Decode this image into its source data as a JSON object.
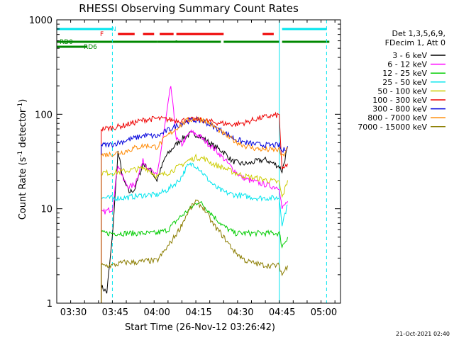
{
  "chart_data": {
    "type": "line",
    "title": "RHESSI Observing Summary Count Rates",
    "xlabel": "Start Time (26-Nov-12 03:26:42)",
    "ylabel_pre": "Count Rate (s",
    "ylabel_sup": "-1",
    "ylabel_mid": " detector",
    "ylabel_sup2": "-1",
    "ylabel_post": ")",
    "yscale": "log",
    "ylim": [
      1,
      1000
    ],
    "xlim": [
      "03:24",
      "05:06"
    ],
    "x_ticks": [
      "03:30",
      "03:45",
      "04:00",
      "04:15",
      "04:30",
      "04:45",
      "05:00"
    ],
    "y_ticks": [
      "1",
      "10",
      "100",
      "1000"
    ],
    "footer_date": "21-Oct-2021 02:40",
    "legend": {
      "header_line1": "Det 1,3,5,6,9,",
      "header_line2": "FDecim 1, Att 0",
      "entries": [
        {
          "label": "3 - 6 keV",
          "color": "#000000"
        },
        {
          "label": "6 - 12 keV",
          "color": "#ff00ff"
        },
        {
          "label": "12 - 25 keV",
          "color": "#00cc00"
        },
        {
          "label": "25 - 50 keV",
          "color": "#00e5ee"
        },
        {
          "label": "50 - 100 keV",
          "color": "#cccc00"
        },
        {
          "label": "100 - 300 keV",
          "color": "#ee0000"
        },
        {
          "label": "300 - 800 keV",
          "color": "#0000dd"
        },
        {
          "label": "800 - 7000 keV",
          "color": "#ff8800"
        },
        {
          "label": "7000 - 15000 keV",
          "color": "#8b7d00"
        }
      ]
    },
    "flags": {
      "night_label": "N",
      "flare_label": "F",
      "rd0_label": "RD0",
      "rd6_label": "RD6",
      "night_color": "#00e5ee",
      "flare_color": "#ee0000",
      "rd_color": "#008800",
      "night_intervals": [
        [
          "03:24",
          "03:44"
        ],
        [
          "04:45",
          "05:01"
        ]
      ],
      "flare_intervals": [
        [
          "03:46",
          "03:52"
        ],
        [
          "03:55",
          "03:59"
        ],
        [
          "04:01",
          "04:06"
        ],
        [
          "04:07",
          "04:24"
        ],
        [
          "04:38",
          "04:42"
        ]
      ],
      "rd0_intervals": [
        [
          "03:24",
          "03:35"
        ]
      ],
      "rd6_intervals": [
        [
          "03:24",
          "04:00"
        ],
        [
          "04:00",
          "04:23"
        ],
        [
          "04:24",
          "04:44"
        ],
        [
          "04:45",
          "05:02"
        ]
      ]
    },
    "dashed_vlines": [
      "03:44",
      "05:01"
    ],
    "solid_vlines": [
      "04:44"
    ],
    "series": [
      {
        "name": "3 - 6 keV",
        "color": "#000000",
        "x": [
          "03:40",
          "03:42",
          "03:44",
          "03:46",
          "03:48",
          "03:50",
          "03:52",
          "03:55",
          "03:58",
          "04:00",
          "04:03",
          "04:06",
          "04:09",
          "04:12",
          "04:15",
          "04:18",
          "04:21",
          "04:24",
          "04:27",
          "04:30",
          "04:33",
          "04:36",
          "04:39",
          "04:42",
          "04:44",
          "04:45",
          "04:47"
        ],
        "y": [
          1.5,
          1.3,
          5,
          40,
          20,
          15,
          16,
          30,
          25,
          20,
          35,
          45,
          55,
          62,
          60,
          52,
          45,
          40,
          32,
          30,
          30,
          32,
          33,
          30,
          28,
          25,
          45
        ]
      },
      {
        "name": "6 - 12 keV",
        "color": "#ff00ff",
        "x": [
          "03:40",
          "03:42",
          "03:44",
          "03:46",
          "03:48",
          "03:50",
          "03:52",
          "03:55",
          "03:58",
          "04:00",
          "04:03",
          "04:05",
          "04:07",
          "04:09",
          "04:12",
          "04:15",
          "04:18",
          "04:21",
          "04:24",
          "04:27",
          "04:30",
          "04:33",
          "04:36",
          "04:39",
          "04:42",
          "04:44",
          "04:45",
          "04:47"
        ],
        "y": [
          9,
          9.5,
          10,
          30,
          20,
          17,
          18,
          32,
          25,
          22,
          80,
          200,
          55,
          48,
          65,
          60,
          50,
          42,
          34,
          27,
          22,
          20,
          19,
          18,
          17,
          17,
          10,
          12
        ]
      },
      {
        "name": "12 - 25 keV",
        "color": "#00cc00",
        "x": [
          "03:40",
          "03:44",
          "03:48",
          "03:52",
          "03:56",
          "04:00",
          "04:04",
          "04:08",
          "04:12",
          "04:15",
          "04:18",
          "04:21",
          "04:24",
          "04:28",
          "04:32",
          "04:36",
          "04:40",
          "04:44",
          "04:45",
          "04:47"
        ],
        "y": [
          5.5,
          5.5,
          5.5,
          5.5,
          5.5,
          5.5,
          6,
          8,
          10,
          12,
          10,
          8,
          6.5,
          5.5,
          5.5,
          5.5,
          5.5,
          5.5,
          4,
          5
        ]
      },
      {
        "name": "25 - 50 keV",
        "color": "#00e5ee",
        "x": [
          "03:40",
          "03:44",
          "03:48",
          "03:52",
          "03:56",
          "04:00",
          "04:04",
          "04:08",
          "04:11",
          "04:13",
          "04:15",
          "04:18",
          "04:21",
          "04:24",
          "04:28",
          "04:32",
          "04:36",
          "04:40",
          "04:44",
          "04:45",
          "04:47"
        ],
        "y": [
          13,
          13,
          13,
          13.5,
          14,
          14,
          16,
          20,
          28,
          30,
          27,
          21,
          17,
          15,
          14,
          13.5,
          13,
          13,
          13,
          7,
          11
        ]
      },
      {
        "name": "50 - 100 keV",
        "color": "#cccc00",
        "x": [
          "03:40",
          "03:44",
          "03:48",
          "03:52",
          "03:56",
          "04:00",
          "04:04",
          "04:08",
          "04:11",
          "04:14",
          "04:17",
          "04:20",
          "04:24",
          "04:28",
          "04:32",
          "04:36",
          "04:40",
          "04:44",
          "04:45",
          "04:47"
        ],
        "y": [
          24,
          24,
          25,
          26,
          27,
          22,
          24,
          28,
          32,
          35,
          34,
          30,
          27,
          24,
          22,
          21,
          20,
          19,
          13,
          20
        ]
      },
      {
        "name": "100 - 300 keV",
        "color": "#ee0000",
        "x": [
          "03:40",
          "03:44",
          "03:48",
          "03:52",
          "03:56",
          "04:00",
          "04:04",
          "04:08",
          "04:11",
          "04:14",
          "04:17",
          "04:20",
          "04:24",
          "04:28",
          "04:32",
          "04:36",
          "04:40",
          "04:44",
          "04:45",
          "04:47"
        ],
        "y": [
          70,
          72,
          76,
          82,
          88,
          90,
          88,
          86,
          87,
          88,
          86,
          83,
          80,
          78,
          82,
          90,
          95,
          98,
          25,
          30
        ]
      },
      {
        "name": "300 - 800 keV",
        "color": "#0000dd",
        "x": [
          "03:40",
          "03:44",
          "03:48",
          "03:52",
          "03:56",
          "04:00",
          "04:04",
          "04:08",
          "04:11",
          "04:14",
          "04:17",
          "04:20",
          "04:24",
          "04:28",
          "04:32",
          "04:36",
          "04:40",
          "04:44",
          "04:45",
          "04:47"
        ],
        "y": [
          47,
          48,
          52,
          56,
          60,
          58,
          68,
          78,
          85,
          87,
          84,
          75,
          65,
          55,
          50,
          48,
          47,
          47,
          40,
          46
        ]
      },
      {
        "name": "800 - 7000 keV",
        "color": "#ff8800",
        "x": [
          "03:40",
          "03:44",
          "03:48",
          "03:52",
          "03:56",
          "04:00",
          "04:04",
          "04:08",
          "04:11",
          "04:14",
          "04:17",
          "04:20",
          "04:24",
          "04:28",
          "04:32",
          "04:36",
          "04:40",
          "04:44",
          "04:45",
          "04:47"
        ],
        "y": [
          37,
          38,
          40,
          44,
          47,
          45,
          60,
          75,
          86,
          90,
          88,
          76,
          62,
          52,
          46,
          43,
          42,
          42,
          35,
          44
        ]
      },
      {
        "name": "7000 - 15000 keV",
        "color": "#8b7d00",
        "x": [
          "03:40",
          "03:44",
          "03:48",
          "03:52",
          "03:56",
          "04:00",
          "04:04",
          "04:08",
          "04:11",
          "04:14",
          "04:17",
          "04:20",
          "04:24",
          "04:28",
          "04:32",
          "04:36",
          "04:40",
          "04:44",
          "04:45",
          "04:47"
        ],
        "y": [
          2.5,
          2.5,
          2.7,
          2.7,
          2.8,
          2.8,
          4,
          6,
          9,
          12,
          10,
          7,
          5,
          3.5,
          2.8,
          2.6,
          2.5,
          2.5,
          2,
          2.5
        ]
      }
    ]
  }
}
